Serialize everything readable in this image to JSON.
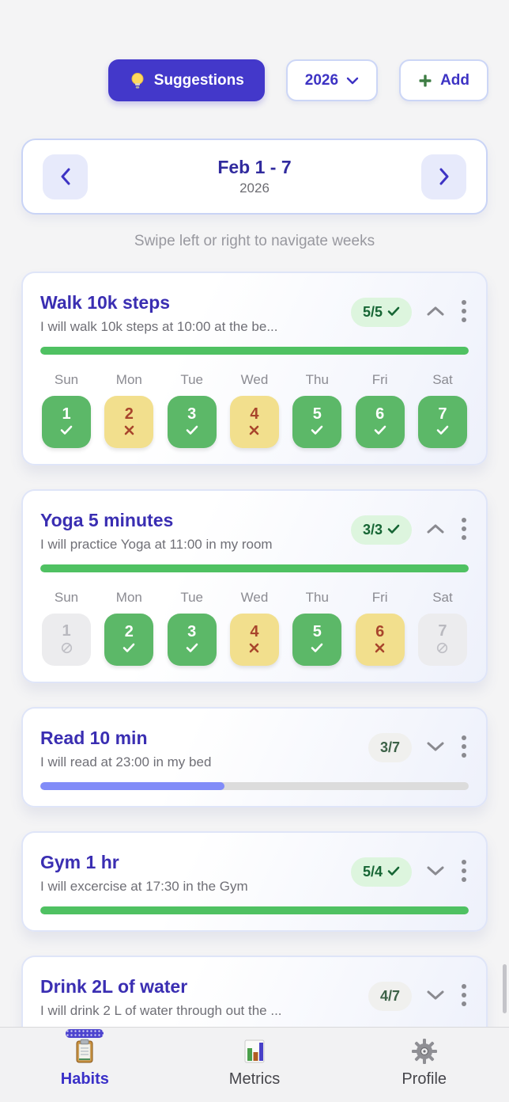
{
  "toolbar": {
    "suggestions_label": "Suggestions",
    "year_value": "2026",
    "add_label": "Add"
  },
  "week_nav": {
    "title": "Feb 1 - 7",
    "subtitle": "2026",
    "hint": "Swipe left or right to navigate weeks"
  },
  "day_headers": [
    "Sun",
    "Mon",
    "Tue",
    "Wed",
    "Thu",
    "Fri",
    "Sat"
  ],
  "habits": [
    {
      "title": "Walk 10k steps",
      "subtitle": "I will walk 10k steps at 10:00 at the be...",
      "badge": "5/5",
      "badge_checked": true,
      "expanded": true,
      "progress_percent": 100,
      "progress_color": "#4fc162",
      "days": [
        {
          "num": "1",
          "state": "done"
        },
        {
          "num": "2",
          "state": "missed"
        },
        {
          "num": "3",
          "state": "done"
        },
        {
          "num": "4",
          "state": "missed"
        },
        {
          "num": "5",
          "state": "done"
        },
        {
          "num": "6",
          "state": "done"
        },
        {
          "num": "7",
          "state": "done"
        }
      ]
    },
    {
      "title": "Yoga 5 minutes",
      "subtitle": "I will practice Yoga at 11:00 in my room",
      "badge": "3/3",
      "badge_checked": true,
      "expanded": true,
      "progress_percent": 100,
      "progress_color": "#4fc162",
      "days": [
        {
          "num": "1",
          "state": "disabled"
        },
        {
          "num": "2",
          "state": "done"
        },
        {
          "num": "3",
          "state": "done"
        },
        {
          "num": "4",
          "state": "missed"
        },
        {
          "num": "5",
          "state": "done"
        },
        {
          "num": "6",
          "state": "missed"
        },
        {
          "num": "7",
          "state": "disabled"
        }
      ]
    },
    {
      "title": "Read 10 min",
      "subtitle": "I will read at 23:00 in my bed",
      "badge": "3/7",
      "badge_checked": false,
      "expanded": false,
      "progress_percent": 43,
      "progress_color": "#818cf8",
      "days": []
    },
    {
      "title": "Gym 1 hr",
      "subtitle": "I will excercise at 17:30 in the Gym",
      "badge": "5/4",
      "badge_checked": true,
      "expanded": false,
      "progress_percent": 100,
      "progress_color": "#4fc162",
      "days": []
    },
    {
      "title": "Drink 2L of water",
      "subtitle": "I will drink 2 L of water through out the ...",
      "badge": "4/7",
      "badge_checked": false,
      "expanded": false,
      "progress_percent": 57,
      "progress_color": "#818cf8",
      "days": []
    }
  ],
  "nav": {
    "items": [
      {
        "label": "Habits",
        "icon": "clipboard-icon",
        "active": true
      },
      {
        "label": "Metrics",
        "icon": "bar-chart-icon",
        "active": false
      },
      {
        "label": "Profile",
        "icon": "gear-icon",
        "active": false
      }
    ]
  },
  "colors": {
    "accent": "#4338ca",
    "title": "#3a2eb2",
    "done_tile": "#5cb868",
    "missed_tile": "#f2df8d",
    "missed_text": "#a8452c",
    "disabled_tile": "#ececee",
    "badge_green_bg": "#ddf5de",
    "badge_green_text": "#166534",
    "progress_green": "#4fc162",
    "progress_indigo": "#818cf8",
    "progress_track": "#dcdcdc"
  }
}
